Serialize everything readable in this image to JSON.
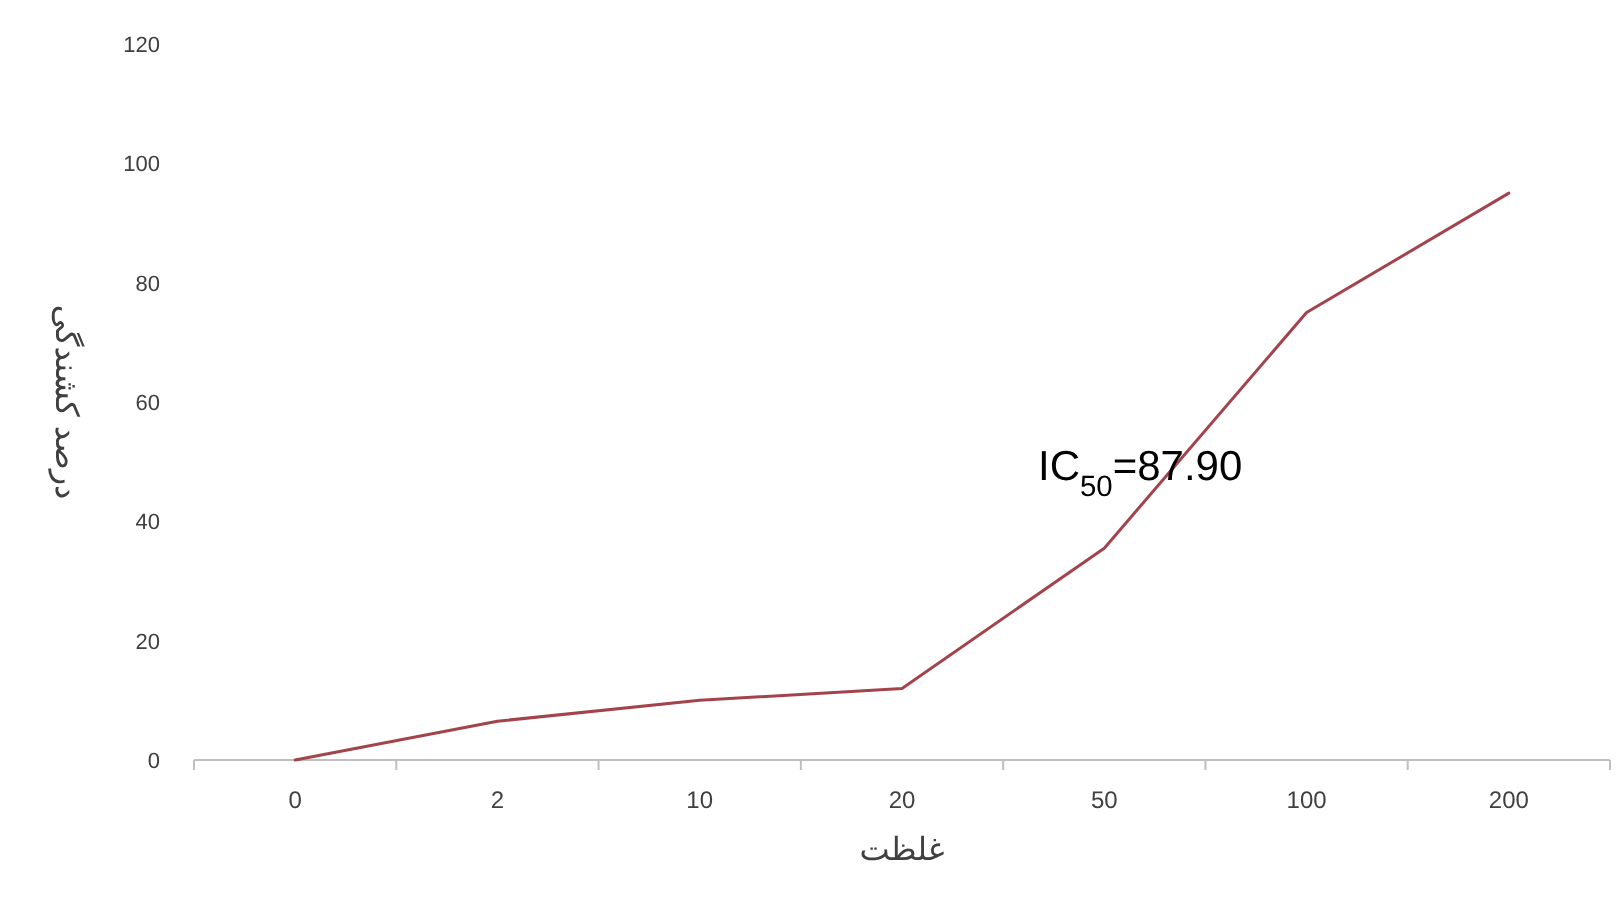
{
  "chart_data": {
    "type": "line",
    "xlabel": "غلظت",
    "ylabel": "درصد کشندگی",
    "categories": [
      "0",
      "2",
      "10",
      "20",
      "50",
      "100",
      "200"
    ],
    "series": [
      {
        "color": "#a3434c",
        "values": [
          0,
          6.5,
          10,
          12,
          35.5,
          75,
          95
        ]
      }
    ],
    "ylim": [
      0,
      120
    ],
    "yticks": [
      0,
      20,
      40,
      60,
      80,
      100,
      120
    ],
    "grid": false,
    "marker": "none",
    "line_style": "solid",
    "annotations": [
      "IC$_{50}$=87.90"
    ]
  }
}
